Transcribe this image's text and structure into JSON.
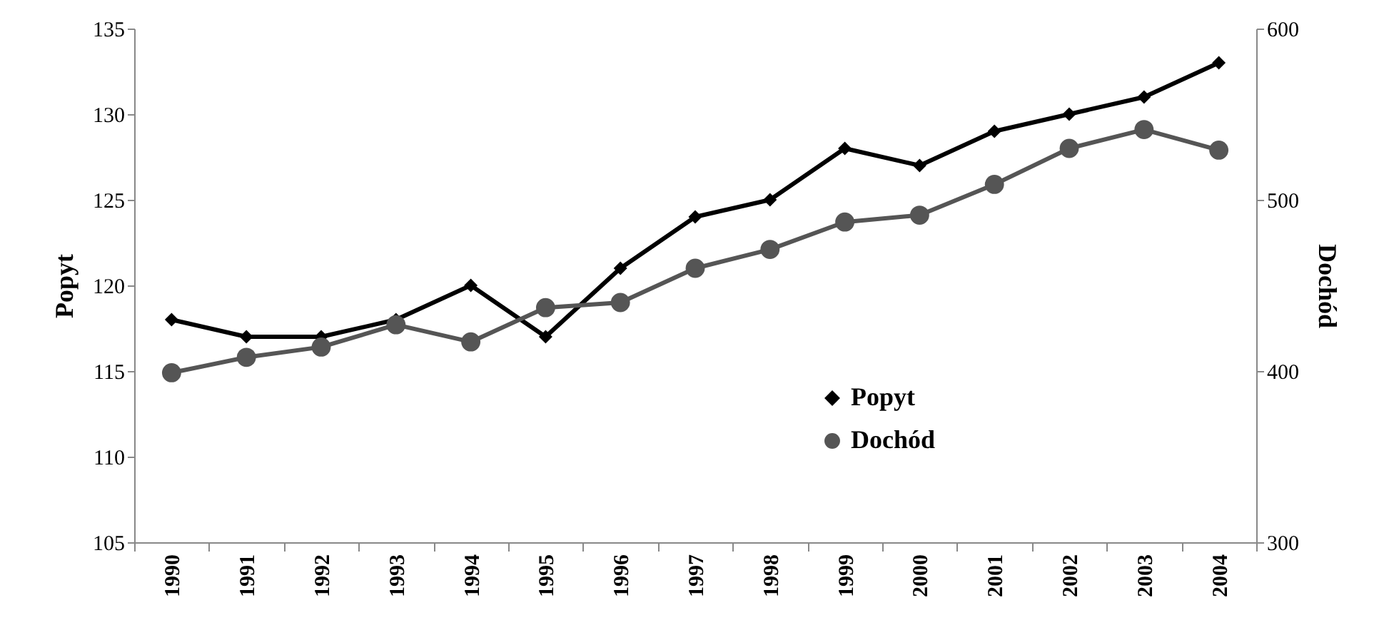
{
  "chart_data": {
    "type": "line",
    "ylabel": "Popyt",
    "y2label": "Dochód",
    "categories": [
      "1990",
      "1991",
      "1992",
      "1993",
      "1994",
      "1995",
      "1996",
      "1997",
      "1998",
      "1999",
      "2000",
      "2001",
      "2002",
      "2003",
      "2004"
    ],
    "series": [
      {
        "name": "Popyt",
        "color": "#000000",
        "marker": "diamond",
        "values": [
          118,
          117,
          117,
          118,
          120,
          117,
          121,
          124,
          125,
          128,
          127,
          129,
          130,
          131,
          133
        ]
      },
      {
        "name": "Dochód",
        "color": "#555555",
        "marker": "circle",
        "axis": "y2",
        "values": [
          399,
          408,
          414,
          427,
          417,
          437,
          440,
          460,
          471,
          487,
          491,
          509,
          530,
          541,
          529
        ]
      }
    ],
    "ylim": [
      105,
      135
    ],
    "yticks": [
      105,
      110,
      115,
      120,
      125,
      130,
      135
    ],
    "y2lim": [
      300,
      600
    ],
    "y2ticks": [
      300,
      400,
      500,
      600
    ],
    "grid": false,
    "legend": "bottom right"
  }
}
